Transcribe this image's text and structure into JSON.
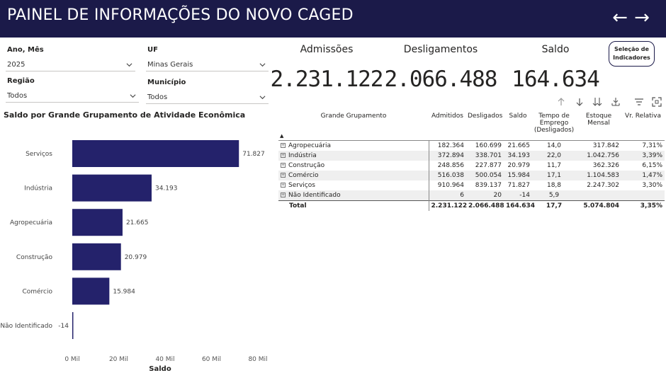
{
  "header": {
    "title": "PAINEL DE INFORMAÇÕES DO NOVO CAGED",
    "back_glyph": "←",
    "forward_glyph": "→"
  },
  "filters": {
    "ano_mes": {
      "label": "Ano, Mês",
      "value": "2025"
    },
    "uf": {
      "label": "UF",
      "value": "Minas Gerais"
    },
    "regiao": {
      "label": "Região",
      "value": "Todos"
    },
    "municipio": {
      "label": "Município",
      "value": "Todos"
    }
  },
  "kpis": {
    "admissoes": {
      "label": "Admissões",
      "value": "2.231.122"
    },
    "desligamentos": {
      "label": "Desligamentos",
      "value": "2.066.488"
    },
    "saldo": {
      "label": "Saldo",
      "value": "164.634"
    }
  },
  "selection_button": {
    "line1": "Seleção de",
    "line2": "Indicadores"
  },
  "chart_title": "Saldo por Grande Grupamento de Atividade Econômica",
  "chart_data": {
    "type": "bar",
    "orientation": "horizontal",
    "categories": [
      "Serviços",
      "Indústria",
      "Agropecuária",
      "Construção",
      "Comércio",
      "Não Identificado"
    ],
    "values": [
      71827,
      34193,
      21665,
      20979,
      15984,
      -14
    ],
    "value_labels": [
      "71.827",
      "34.193",
      "21.665",
      "20.979",
      "15.984",
      "-14"
    ],
    "xlabel": "Saldo",
    "xlim": [
      0,
      80000
    ],
    "x_ticks": [
      0,
      20000,
      40000,
      60000,
      80000
    ],
    "x_tick_labels": [
      "0 Mil",
      "20 Mil",
      "40 Mil",
      "60 Mil",
      "80 Mil"
    ],
    "bar_color": "#24226b"
  },
  "table": {
    "headers": {
      "grupo": "Grande Grupamento",
      "admitidos": "Admitidos",
      "desligados": "Desligados",
      "saldo": "Saldo",
      "tempo": "Tempo de Emprego (Desligados)",
      "estoque": "Estoque Mensal",
      "vr": "Vr. Relativa"
    },
    "rows": [
      {
        "grupo": "Agropecuária",
        "admitidos": "182.364",
        "desligados": "160.699",
        "saldo": "21.665",
        "tempo": "14,0",
        "estoque": "317.842",
        "vr": "7,31%"
      },
      {
        "grupo": "Indústria",
        "admitidos": "372.894",
        "desligados": "338.701",
        "saldo": "34.193",
        "tempo": "22,0",
        "estoque": "1.042.756",
        "vr": "3,39%"
      },
      {
        "grupo": "Construção",
        "admitidos": "248.856",
        "desligados": "227.877",
        "saldo": "20.979",
        "tempo": "11,7",
        "estoque": "362.326",
        "vr": "6,15%"
      },
      {
        "grupo": "Comércio",
        "admitidos": "516.038",
        "desligados": "500.054",
        "saldo": "15.984",
        "tempo": "17,1",
        "estoque": "1.104.583",
        "vr": "1,47%"
      },
      {
        "grupo": "Serviços",
        "admitidos": "910.964",
        "desligados": "839.137",
        "saldo": "71.827",
        "tempo": "18,8",
        "estoque": "2.247.302",
        "vr": "3,30%"
      },
      {
        "grupo": "Não Identificado",
        "admitidos": "6",
        "desligados": "20",
        "saldo": "-14",
        "tempo": "5,9",
        "estoque": "",
        "vr": ""
      }
    ],
    "total": {
      "grupo": "Total",
      "admitidos": "2.231.122",
      "desligados": "2.066.488",
      "saldo": "164.634",
      "tempo": "17,7",
      "estoque": "5.074.804",
      "vr": "3,35%"
    }
  },
  "colors": {
    "header_bg": "#1b1a49",
    "bar": "#24226b"
  }
}
